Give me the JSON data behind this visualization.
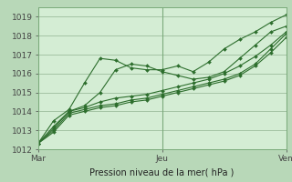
{
  "xlabel": "Pression niveau de la mer( hPa )",
  "bg_color": "#b8d8b8",
  "plot_bg_color": "#d4edd4",
  "grid_color": "#9dbd9d",
  "line_color": "#2d6e2d",
  "ylim": [
    1012,
    1019.5
  ],
  "xlim": [
    0,
    48
  ],
  "xtick_pos": [
    0,
    24,
    48
  ],
  "xticklabels": [
    "Mar",
    "Jeu",
    "Ven"
  ],
  "yticks": [
    1012,
    1013,
    1014,
    1015,
    1016,
    1017,
    1018,
    1019
  ],
  "series": [
    {
      "x": [
        0,
        3,
        6,
        9,
        12,
        15,
        18,
        21,
        24,
        27,
        30,
        33,
        36,
        39,
        42,
        45,
        48
      ],
      "y": [
        1012.3,
        1013.5,
        1014.1,
        1015.5,
        1016.8,
        1016.7,
        1016.3,
        1016.2,
        1016.2,
        1016.4,
        1016.1,
        1016.6,
        1017.3,
        1017.8,
        1018.2,
        1018.7,
        1019.1
      ]
    },
    {
      "x": [
        0,
        3,
        6,
        9,
        12,
        15,
        18,
        21,
        24,
        27,
        30,
        33,
        36,
        39,
        42,
        45,
        48
      ],
      "y": [
        1012.3,
        1013.2,
        1014.0,
        1014.3,
        1015.0,
        1016.2,
        1016.5,
        1016.4,
        1016.1,
        1015.9,
        1015.7,
        1015.8,
        1016.1,
        1016.8,
        1017.5,
        1018.2,
        1018.5
      ]
    },
    {
      "x": [
        0,
        3,
        6,
        9,
        12,
        15,
        18,
        21,
        24,
        27,
        30,
        33,
        36,
        39,
        42,
        45,
        48
      ],
      "y": [
        1012.3,
        1013.1,
        1014.0,
        1014.2,
        1014.5,
        1014.7,
        1014.8,
        1014.9,
        1015.1,
        1015.3,
        1015.5,
        1015.7,
        1016.0,
        1016.4,
        1016.9,
        1017.5,
        1018.2
      ]
    },
    {
      "x": [
        0,
        3,
        6,
        9,
        12,
        15,
        18,
        21,
        24,
        27,
        30,
        33,
        36,
        39,
        42,
        45,
        48
      ],
      "y": [
        1012.3,
        1013.0,
        1013.9,
        1014.1,
        1014.3,
        1014.4,
        1014.6,
        1014.7,
        1014.9,
        1015.1,
        1015.3,
        1015.5,
        1015.7,
        1016.0,
        1016.5,
        1017.3,
        1018.1
      ]
    },
    {
      "x": [
        0,
        3,
        6,
        9,
        12,
        15,
        18,
        21,
        24,
        27,
        30,
        33,
        36,
        39,
        42,
        45,
        48
      ],
      "y": [
        1012.3,
        1012.9,
        1013.8,
        1014.0,
        1014.2,
        1014.3,
        1014.5,
        1014.6,
        1014.8,
        1015.0,
        1015.2,
        1015.4,
        1015.6,
        1015.9,
        1016.4,
        1017.1,
        1017.9
      ]
    }
  ]
}
